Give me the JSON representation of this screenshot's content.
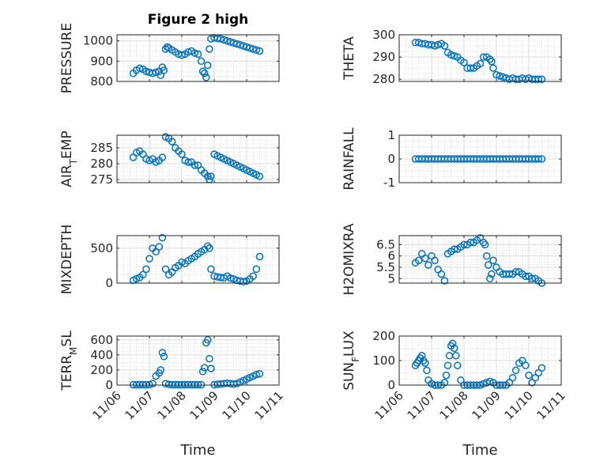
{
  "figure_title": "Figure 2 high",
  "marker_color": "#0072BD",
  "chart_data": [
    {
      "type": "scatter",
      "ylabel": "PRESSURE",
      "ylim": [
        800,
        1030
      ],
      "yticks": [
        "800",
        "900",
        "1000"
      ],
      "yticks_values": [
        800,
        900,
        1000
      ],
      "xlim_days": [
        "11/06",
        "11/11"
      ],
      "x": [
        0.5,
        0.6,
        0.7,
        0.8,
        0.9,
        1.0,
        1.1,
        1.2,
        1.3,
        1.35,
        1.4,
        1.45,
        1.5,
        1.55,
        1.6,
        1.7,
        1.8,
        1.9,
        2.0,
        2.1,
        2.2,
        2.3,
        2.4,
        2.5,
        2.6,
        2.65,
        2.7,
        2.75,
        2.8,
        2.85,
        2.9,
        3.0,
        3.1,
        3.2,
        3.3,
        3.4,
        3.5,
        3.6,
        3.7,
        3.8,
        3.9,
        4.0,
        4.1,
        4.2,
        4.3,
        4.4
      ],
      "values": [
        840,
        855,
        865,
        860,
        850,
        845,
        840,
        845,
        850,
        830,
        870,
        855,
        960,
        970,
        965,
        955,
        945,
        935,
        930,
        935,
        945,
        950,
        940,
        935,
        900,
        850,
        840,
        820,
        880,
        960,
        1010,
        1015,
        1012,
        1010,
        1005,
        1000,
        995,
        990,
        985,
        980,
        975,
        970,
        965,
        960,
        955,
        950
      ]
    },
    {
      "type": "scatter",
      "ylabel": "THETA",
      "ylim": [
        279,
        300
      ],
      "yticks": [
        "280",
        "290",
        "300"
      ],
      "yticks_values": [
        280,
        290,
        300
      ],
      "x": [
        0.5,
        0.6,
        0.7,
        0.8,
        0.9,
        1.0,
        1.1,
        1.2,
        1.3,
        1.4,
        1.5,
        1.6,
        1.7,
        1.8,
        1.9,
        2.0,
        2.1,
        2.2,
        2.3,
        2.4,
        2.5,
        2.6,
        2.7,
        2.8,
        2.85,
        2.9,
        3.0,
        3.1,
        3.2,
        3.3,
        3.4,
        3.5,
        3.6,
        3.7,
        3.8,
        3.9,
        4.0,
        4.1,
        4.2,
        4.3,
        4.4
      ],
      "values": [
        296.5,
        296.5,
        296,
        296,
        295.5,
        295.5,
        295,
        295.5,
        296,
        295,
        292,
        291,
        290.5,
        290,
        288.5,
        287.5,
        285,
        285,
        285,
        286,
        287,
        290,
        290,
        289,
        288,
        285,
        282,
        281.5,
        281,
        280.5,
        280,
        280.5,
        280,
        280,
        280.5,
        280,
        280.5,
        280,
        280,
        280,
        280
      ]
    },
    {
      "type": "scatter",
      "ylabel": "AIR_TEMP",
      "ylim": [
        274,
        289
      ],
      "yticks": [
        "275",
        "280",
        "285"
      ],
      "yticks_values": [
        275,
        280,
        285
      ],
      "x": [
        0.5,
        0.6,
        0.7,
        0.8,
        0.9,
        1.0,
        1.1,
        1.2,
        1.3,
        1.4,
        1.5,
        1.6,
        1.7,
        1.8,
        1.9,
        2.0,
        2.1,
        2.2,
        2.3,
        2.4,
        2.5,
        2.6,
        2.7,
        2.8,
        2.85,
        2.9,
        3.0,
        3.1,
        3.2,
        3.3,
        3.4,
        3.5,
        3.6,
        3.7,
        3.8,
        3.9,
        4.0,
        4.1,
        4.2,
        4.3,
        4.4
      ],
      "values": [
        282,
        283.5,
        284,
        283,
        281.5,
        281,
        281.5,
        280.5,
        281,
        282,
        288.5,
        288,
        287,
        285,
        284,
        283,
        281,
        280.5,
        280.5,
        279.5,
        279.5,
        278,
        277,
        276,
        275,
        276,
        283,
        282.5,
        282,
        281.5,
        281,
        280.5,
        280,
        279.5,
        279,
        278.5,
        278,
        277.5,
        277,
        276.5,
        276
      ]
    },
    {
      "type": "scatter",
      "ylabel": "RAINFALL",
      "ylim": [
        -1,
        1
      ],
      "yticks": [
        "-1",
        "0",
        "1"
      ],
      "yticks_values": [
        -1,
        0,
        1
      ],
      "x": [
        0.5,
        0.6,
        0.7,
        0.8,
        0.9,
        1.0,
        1.1,
        1.2,
        1.3,
        1.4,
        1.5,
        1.6,
        1.7,
        1.8,
        1.9,
        2.0,
        2.1,
        2.2,
        2.3,
        2.4,
        2.5,
        2.6,
        2.7,
        2.8,
        2.9,
        3.0,
        3.1,
        3.2,
        3.3,
        3.4,
        3.5,
        3.6,
        3.7,
        3.8,
        3.9,
        4.0,
        4.1,
        4.2,
        4.3,
        4.4
      ],
      "values": [
        0,
        0,
        0,
        0,
        0,
        0,
        0,
        0,
        0,
        0,
        0,
        0,
        0,
        0,
        0,
        0,
        0,
        0,
        0,
        0,
        0,
        0,
        0,
        0,
        0,
        0,
        0,
        0,
        0,
        0,
        0,
        0,
        0,
        0,
        0,
        0,
        0,
        0,
        0,
        0
      ]
    },
    {
      "type": "scatter",
      "ylabel": "MIXDEPTH",
      "ylim": [
        0,
        680
      ],
      "yticks": [
        "0",
        "500"
      ],
      "yticks_values": [
        0,
        500
      ],
      "x": [
        0.5,
        0.6,
        0.7,
        0.8,
        0.9,
        1.0,
        1.1,
        1.2,
        1.3,
        1.4,
        1.5,
        1.6,
        1.7,
        1.8,
        1.9,
        2.0,
        2.1,
        2.2,
        2.3,
        2.4,
        2.5,
        2.6,
        2.7,
        2.8,
        2.85,
        2.9,
        3.0,
        3.1,
        3.2,
        3.3,
        3.4,
        3.5,
        3.6,
        3.7,
        3.8,
        3.9,
        4.0,
        4.1,
        4.2,
        4.3,
        4.4
      ],
      "values": [
        40,
        60,
        80,
        120,
        200,
        350,
        500,
        450,
        520,
        650,
        200,
        120,
        160,
        220,
        250,
        300,
        280,
        320,
        350,
        380,
        420,
        450,
        480,
        530,
        500,
        200,
        100,
        90,
        80,
        75,
        100,
        70,
        60,
        40,
        30,
        20,
        30,
        60,
        100,
        200,
        380
      ]
    },
    {
      "type": "scatter",
      "ylabel": "H2OMIXRA",
      "ylim": [
        4.8,
        6.9
      ],
      "yticks": [
        "5",
        "5.5",
        "6",
        "6.5"
      ],
      "yticks_values": [
        5,
        5.5,
        6,
        6.5
      ],
      "x": [
        0.5,
        0.6,
        0.7,
        0.8,
        0.9,
        1.0,
        1.1,
        1.2,
        1.3,
        1.4,
        1.5,
        1.6,
        1.7,
        1.8,
        1.9,
        2.0,
        2.1,
        2.2,
        2.3,
        2.4,
        2.5,
        2.6,
        2.65,
        2.7,
        2.75,
        2.8,
        2.85,
        2.9,
        3.0,
        3.1,
        3.2,
        3.3,
        3.4,
        3.5,
        3.6,
        3.7,
        3.8,
        3.9,
        4.0,
        4.1,
        4.2,
        4.3,
        4.4
      ],
      "values": [
        5.7,
        5.8,
        6.1,
        5.9,
        5.6,
        6.0,
        5.8,
        5.4,
        5.2,
        4.9,
        6.1,
        6.2,
        6.3,
        6.3,
        6.4,
        6.5,
        6.5,
        6.6,
        6.6,
        6.7,
        6.8,
        6.6,
        6.5,
        6.0,
        5.6,
        5.0,
        5.2,
        5.8,
        5.5,
        5.3,
        5.2,
        5.2,
        5.2,
        5.2,
        5.3,
        5.3,
        5.2,
        5.1,
        5.1,
        5.0,
        5.0,
        4.9,
        4.8
      ]
    },
    {
      "type": "scatter",
      "ylabel": "TERR_MSL",
      "ylim": [
        0,
        650
      ],
      "yticks": [
        "0",
        "200",
        "400",
        "600"
      ],
      "yticks_values": [
        0,
        200,
        400,
        600
      ],
      "x": [
        0.5,
        0.6,
        0.7,
        0.8,
        0.9,
        1.0,
        1.1,
        1.2,
        1.3,
        1.35,
        1.4,
        1.45,
        1.5,
        1.6,
        1.7,
        1.8,
        1.9,
        2.0,
        2.1,
        2.2,
        2.3,
        2.4,
        2.5,
        2.6,
        2.65,
        2.7,
        2.75,
        2.8,
        2.85,
        2.9,
        3.0,
        3.1,
        3.2,
        3.3,
        3.4,
        3.5,
        3.6,
        3.7,
        3.8,
        3.9,
        4.0,
        4.1,
        4.2,
        4.3,
        4.4
      ],
      "values": [
        5,
        5,
        5,
        5,
        5,
        5,
        20,
        120,
        160,
        200,
        430,
        380,
        20,
        10,
        5,
        5,
        5,
        5,
        5,
        5,
        5,
        5,
        5,
        5,
        180,
        230,
        560,
        600,
        350,
        220,
        5,
        10,
        15,
        20,
        25,
        20,
        15,
        20,
        40,
        60,
        80,
        100,
        120,
        140,
        150
      ]
    },
    {
      "type": "scatter",
      "ylabel": "SUN_FLUX",
      "ylim": [
        0,
        200
      ],
      "yticks": [
        "0",
        "100",
        "200"
      ],
      "yticks_values": [
        0,
        100,
        200
      ],
      "x": [
        0.5,
        0.55,
        0.6,
        0.65,
        0.7,
        0.75,
        0.8,
        0.85,
        0.9,
        1.0,
        1.1,
        1.2,
        1.3,
        1.4,
        1.45,
        1.5,
        1.55,
        1.6,
        1.65,
        1.7,
        1.75,
        1.8,
        1.9,
        2.0,
        2.1,
        2.2,
        2.3,
        2.4,
        2.5,
        2.6,
        2.7,
        2.8,
        2.9,
        3.0,
        3.1,
        3.2,
        3.3,
        3.4,
        3.5,
        3.6,
        3.7,
        3.8,
        3.9,
        4.0,
        4.1,
        4.2,
        4.3,
        4.4
      ],
      "values": [
        80,
        90,
        100,
        110,
        120,
        100,
        90,
        60,
        20,
        5,
        0,
        0,
        0,
        10,
        40,
        80,
        120,
        160,
        170,
        150,
        120,
        80,
        20,
        0,
        0,
        0,
        0,
        0,
        0,
        5,
        10,
        15,
        10,
        0,
        0,
        0,
        0,
        10,
        30,
        60,
        90,
        100,
        80,
        40,
        10,
        30,
        50,
        70
      ]
    }
  ],
  "x_tick_labels": [
    "11/06",
    "11/07",
    "11/08",
    "11/09",
    "11/10",
    "11/11"
  ],
  "x_label": "Time"
}
